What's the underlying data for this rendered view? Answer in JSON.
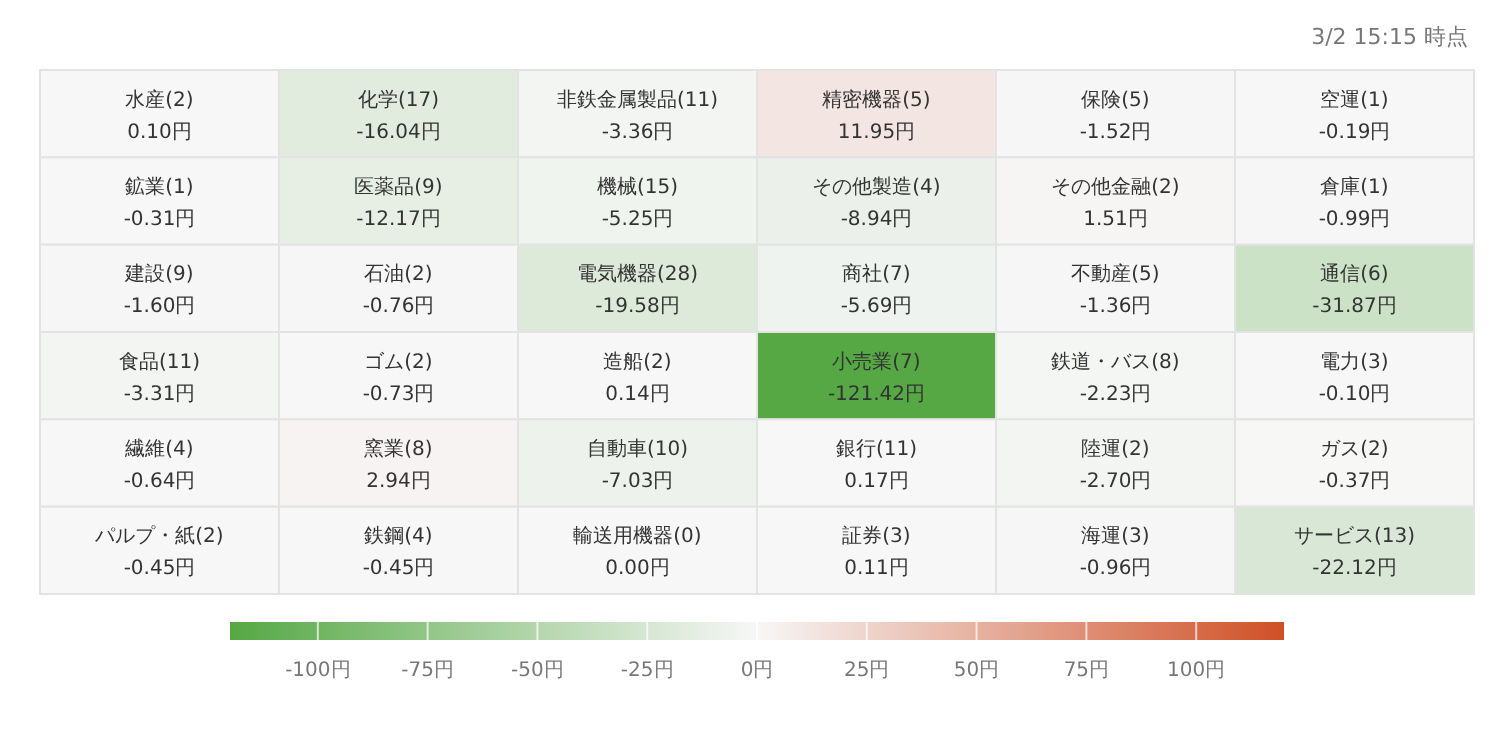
{
  "chart_data": {
    "type": "heatmap",
    "annotations": [
      "3/2 15:15 時点"
    ],
    "categories": [
      null,
      null,
      null,
      null,
      null,
      null
    ],
    "y_categories": [
      null,
      null,
      null,
      null,
      null,
      null
    ],
    "cells": [
      [
        0.1,
        -16.04,
        -3.36,
        11.95,
        -1.52,
        -0.19
      ],
      [
        -0.31,
        -12.17,
        -5.25,
        -8.94,
        1.51,
        -0.99
      ],
      [
        -1.6,
        -0.76,
        -19.58,
        -5.69,
        -1.36,
        -31.87
      ],
      [
        -3.31,
        -0.73,
        0.14,
        -121.42,
        -2.23,
        -0.1
      ],
      [
        -0.64,
        2.94,
        -7.03,
        0.17,
        -2.7,
        -0.37
      ],
      [
        -0.45,
        -0.45,
        0.0,
        0.11,
        -0.96,
        -22.12
      ]
    ],
    "cell_labels": [
      [
        "水産(2)\n0.10円",
        "化学(17)\n-16.04円",
        "非鉄金属製品(11)\n-3.36円",
        "精密機器(5)\n11.95円",
        "保険(5)\n-1.52円",
        "空運(1)\n-0.19円"
      ],
      [
        "鉱業(1)\n-0.31円",
        "医薬品(9)\n-12.17円",
        "機械(15)\n-5.25円",
        "その他製造(4)\n-8.94円",
        "その他金融(2)\n1.51円",
        "倉庫(1)\n-0.99円"
      ],
      [
        "建設(9)\n-1.60円",
        "石油(2)\n-0.76円",
        "電気機器(28)\n-19.58円",
        "商社(7)\n-5.69円",
        "不動産(5)\n-1.36円",
        "通信(6)\n-31.87円"
      ],
      [
        "食品(11)\n-3.31円",
        "ゴム(2)\n-0.73円",
        "造船(2)\n0.14円",
        "小売業(7)\n-121.42円",
        "鉄道・バス(8)\n-2.23円",
        "電力(3)\n-0.10円"
      ],
      [
        "繊維(4)\n-0.64円",
        "窯業(8)\n2.94円",
        "自動車(10)\n-7.03円",
        "銀行(11)\n0.17円",
        "陸運(2)\n-2.70円",
        "ガス(2)\n-0.37円"
      ],
      [
        "パルプ・紙(2)\n-0.45円",
        "鉄鋼(4)\n-0.45円",
        "輸送用機器(0)\n0.00円",
        "証券(3)\n0.11円",
        "海運(3)\n-0.96円",
        "サービス(13)\n-22.12円"
      ]
    ],
    "colors": [
      "#55a844",
      "#f7f7f7",
      "#cf5026"
    ],
    "clim": [
      -120,
      120
    ],
    "cticks": [
      {
        "value": -100,
        "label": "-100円"
      },
      {
        "value": -75,
        "label": "-75円"
      },
      {
        "value": -50,
        "label": "-50円"
      },
      {
        "value": -25,
        "label": "-25円"
      },
      {
        "value": 0,
        "label": "0円"
      },
      {
        "value": 25,
        "label": "25円"
      },
      {
        "value": 50,
        "label": "50円"
      },
      {
        "value": 75,
        "label": "75円"
      },
      {
        "value": 100,
        "label": "100円"
      }
    ]
  }
}
